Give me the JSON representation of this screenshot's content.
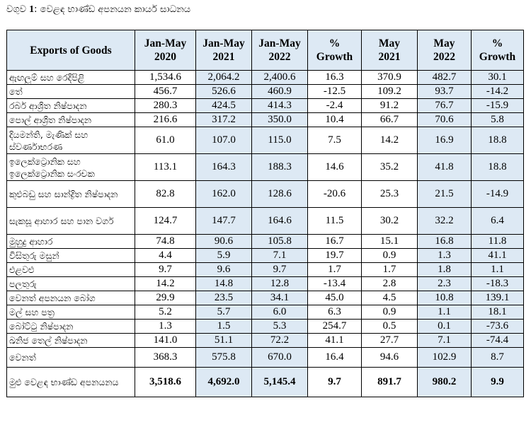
{
  "caption": {
    "prefix": "වගුව ",
    "number": "1",
    "text": ": වෙළඳ භාණ්ඩ අපනයන කාර්ය සාධනය"
  },
  "headers": [
    "Exports of Goods",
    "Jan-May 2020",
    "Jan-May 2021",
    "Jan-May 2022",
    "% Growth",
    "May 2021",
    "May 2022",
    "% Growth"
  ],
  "rows": [
    {
      "label": "ඇඟලුම් සහ රෙදිපිළි",
      "values": [
        "1,534.6",
        "2,064.2",
        "2,400.6",
        "16.3",
        "370.9",
        "482.7",
        "30.1"
      ]
    },
    {
      "label": "තේ",
      "values": [
        "456.7",
        "526.6",
        "460.9",
        "-12.5",
        "109.2",
        "93.7",
        "-14.2"
      ]
    },
    {
      "label": "රබර් ආශ්‍රිත නිෂ්පාදන",
      "values": [
        "280.3",
        "424.5",
        "414.3",
        "-2.4",
        "91.2",
        "76.7",
        "-15.9"
      ]
    },
    {
      "label": "පොල් ආශ්‍රිත නිෂ්පාදන",
      "values": [
        "216.6",
        "317.2",
        "350.0",
        "10.4",
        "66.7",
        "70.6",
        "5.8"
      ]
    },
    {
      "label": "දියමන්ති, මැණික් සහ ස්වර්ණාභරණ",
      "values": [
        "61.0",
        "107.0",
        "115.0",
        "7.5",
        "14.2",
        "16.9",
        "18.8"
      ]
    },
    {
      "label": "ඉලෙක්ට්‍රොනික සහ ඉලෙක්ට්‍රොනික සංරචක",
      "values": [
        "113.1",
        "164.3",
        "188.3",
        "14.6",
        "35.2",
        "41.8",
        "18.8"
      ]
    },
    {
      "label": "කුළුබඩු සහ සාන්ද්‍රිත නිෂ්පාදන",
      "values": [
        "82.8",
        "162.0",
        "128.6",
        "-20.6",
        "25.3",
        "21.5",
        "-14.9"
      ]
    },
    {
      "label": "සැකසූ ආහාර සහ පාන වර්ග",
      "values": [
        "124.7",
        "147.7",
        "164.6",
        "11.5",
        "30.2",
        "32.2",
        "6.4"
      ]
    },
    {
      "label": "මුහුදු ආහාර",
      "values": [
        "74.8",
        "90.6",
        "105.8",
        "16.7",
        "15.1",
        "16.8",
        "11.8"
      ]
    },
    {
      "label": "විසිතුරු මසුන්",
      "values": [
        "4.4",
        "5.9",
        "7.1",
        "19.7",
        "0.9",
        "1.3",
        "41.1"
      ]
    },
    {
      "label": "එළවළු",
      "values": [
        "9.7",
        "9.6",
        "9.7",
        "1.7",
        "1.7",
        "1.8",
        "1.1"
      ]
    },
    {
      "label": "පලතුරු",
      "values": [
        "14.2",
        "14.8",
        "12.8",
        "-13.4",
        "2.8",
        "2.3",
        "-18.3"
      ]
    },
    {
      "label": "වෙනත් අපනයන බෝග",
      "values": [
        "29.9",
        "23.5",
        "34.1",
        "45.0",
        "4.5",
        "10.8",
        "139.1"
      ]
    },
    {
      "label": "මල් සහ පත්‍ර",
      "values": [
        "5.2",
        "5.7",
        "6.0",
        "6.3",
        "0.9",
        "1.1",
        "18.1"
      ]
    },
    {
      "label": "බෝට්ටු නිෂ්පාදන",
      "values": [
        "1.3",
        "1.5",
        "5.3",
        "254.7",
        "0.5",
        "0.1",
        "-73.6"
      ]
    },
    {
      "label": "ඛනිජ තෙල් නිෂ්පාදන",
      "values": [
        "141.0",
        "51.1",
        "72.2",
        "41.1",
        "27.7",
        "7.1",
        "-74.4"
      ]
    },
    {
      "label": "වෙනත්",
      "values": [
        "368.3",
        "575.8",
        "670.0",
        "16.4",
        "94.6",
        "102.9",
        "8.7"
      ]
    }
  ],
  "total": {
    "label": "මුළු වෙළඳ භාණ්ඩ අපනයනය",
    "values": [
      "3,518.6",
      "4,692.0",
      "5,145.4",
      "9.7",
      "891.7",
      "980.2",
      "9.9"
    ]
  }
}
